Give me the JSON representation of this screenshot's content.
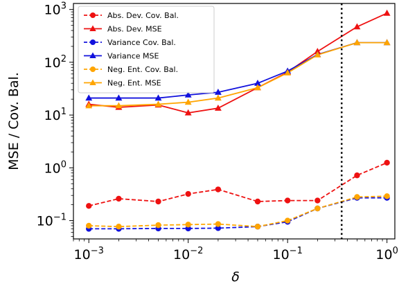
{
  "chart_data": {
    "type": "line",
    "xscale": "log",
    "yscale": "log",
    "xlabel": "δ",
    "ylabel": "MSE / Cov. Bal.",
    "xlim": [
      0.0007,
      1.2
    ],
    "ylim": [
      0.045,
      1300
    ],
    "x_ticks": [
      {
        "value": 0.001,
        "base": "10",
        "exp": "−3"
      },
      {
        "value": 0.01,
        "base": "10",
        "exp": "−2"
      },
      {
        "value": 0.1,
        "base": "10",
        "exp": "−1"
      },
      {
        "value": 1,
        "base": "10",
        "exp": "0"
      }
    ],
    "y_ticks": [
      {
        "value": 0.1,
        "base": "10",
        "exp": "−1"
      },
      {
        "value": 1,
        "base": "10",
        "exp": "0"
      },
      {
        "value": 10,
        "base": "10",
        "exp": "1"
      },
      {
        "value": 100,
        "base": "10",
        "exp": "2"
      },
      {
        "value": 1000,
        "base": "10",
        "exp": "3"
      }
    ],
    "vline": {
      "x": 0.35,
      "style": "dotted",
      "color": "#000000"
    },
    "grid": false,
    "legend_position": "top-left",
    "x": [
      0.001,
      0.002,
      0.005,
      0.01,
      0.02,
      0.05,
      0.1,
      0.2,
      0.5,
      1
    ],
    "series": [
      {
        "name": "Abs. Dev. Cov. Bal.",
        "color": "#ee1111",
        "marker": "circle",
        "linestyle": "dashed",
        "values": [
          0.19,
          0.26,
          0.23,
          0.32,
          0.39,
          0.23,
          0.24,
          0.24,
          0.72,
          1.25
        ]
      },
      {
        "name": "Abs. Dev. MSE",
        "color": "#ee1111",
        "marker": "triangle",
        "linestyle": "solid",
        "values": [
          16,
          14,
          15.5,
          11,
          13.5,
          33,
          65,
          160,
          470,
          850
        ]
      },
      {
        "name": "Variance Cov. Bal.",
        "color": "#1111dd",
        "marker": "circle",
        "linestyle": "dashed",
        "values": [
          0.07,
          0.07,
          0.071,
          0.071,
          0.072,
          0.077,
          0.095,
          0.17,
          0.27,
          0.27
        ]
      },
      {
        "name": "Variance MSE",
        "color": "#1111dd",
        "marker": "triangle",
        "linestyle": "solid",
        "values": [
          21,
          21,
          21,
          24,
          27,
          40,
          68,
          140,
          235,
          235
        ]
      },
      {
        "name": "Neg. Ent. Cov. Bal.",
        "color": "#ffa500",
        "marker": "circle",
        "linestyle": "dashed",
        "values": [
          0.08,
          0.077,
          0.082,
          0.084,
          0.086,
          0.077,
          0.1,
          0.17,
          0.28,
          0.29
        ]
      },
      {
        "name": "Neg. Ent. MSE",
        "color": "#ffa500",
        "marker": "triangle",
        "linestyle": "solid",
        "values": [
          15,
          15,
          16,
          17.5,
          21,
          33,
          63,
          138,
          235,
          235
        ]
      }
    ]
  }
}
